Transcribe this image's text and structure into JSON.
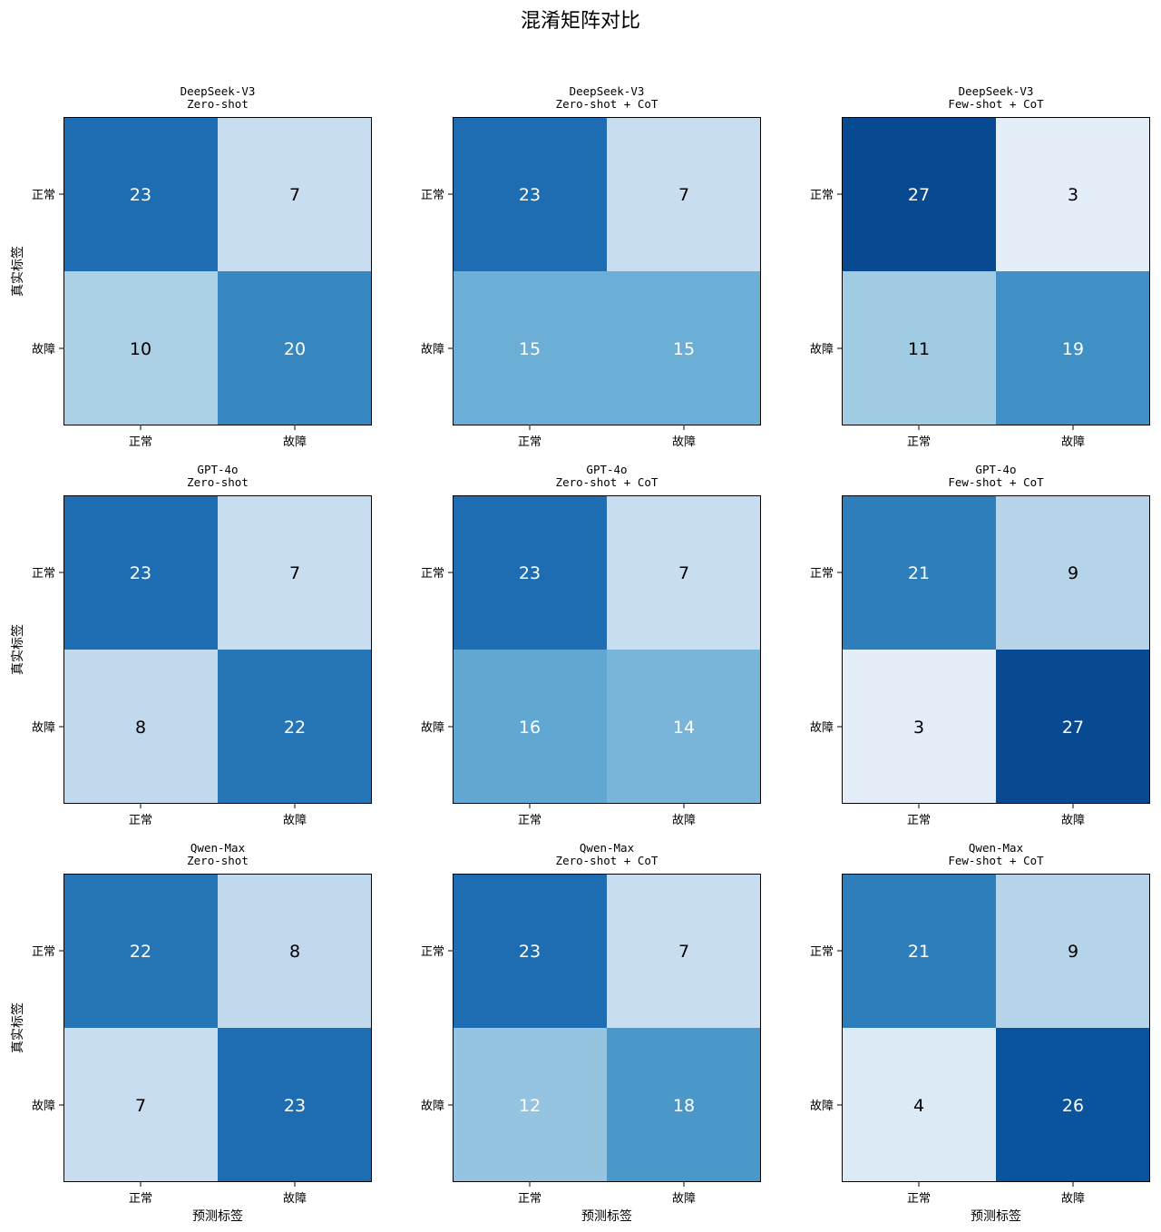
{
  "chart_data": {
    "type": "heatmap",
    "title": "混淆矩阵对比",
    "colormap": "Blues",
    "value_range": [
      0,
      30
    ],
    "xlabel": "预测标签",
    "ylabel": "真实标签",
    "x_tick_labels": [
      "正常",
      "故障"
    ],
    "y_tick_labels": [
      "正常",
      "故障"
    ],
    "panels": [
      {
        "title_line1": "DeepSeek-V3",
        "title_line2": "Zero-shot",
        "matrix": [
          [
            23,
            7
          ],
          [
            10,
            20
          ]
        ]
      },
      {
        "title_line1": "DeepSeek-V3",
        "title_line2": "Zero-shot + CoT",
        "matrix": [
          [
            23,
            7
          ],
          [
            15,
            15
          ]
        ]
      },
      {
        "title_line1": "DeepSeek-V3",
        "title_line2": "Few-shot + CoT",
        "matrix": [
          [
            27,
            3
          ],
          [
            11,
            19
          ]
        ]
      },
      {
        "title_line1": "GPT-4o",
        "title_line2": "Zero-shot",
        "matrix": [
          [
            23,
            7
          ],
          [
            8,
            22
          ]
        ]
      },
      {
        "title_line1": "GPT-4o",
        "title_line2": "Zero-shot + CoT",
        "matrix": [
          [
            23,
            7
          ],
          [
            16,
            14
          ]
        ]
      },
      {
        "title_line1": "GPT-4o",
        "title_line2": "Few-shot + CoT",
        "matrix": [
          [
            21,
            9
          ],
          [
            3,
            27
          ]
        ]
      },
      {
        "title_line1": "Qwen-Max",
        "title_line2": "Zero-shot",
        "matrix": [
          [
            22,
            8
          ],
          [
            7,
            23
          ]
        ]
      },
      {
        "title_line1": "Qwen-Max",
        "title_line2": "Zero-shot + CoT",
        "matrix": [
          [
            23,
            7
          ],
          [
            12,
            18
          ]
        ]
      },
      {
        "title_line1": "Qwen-Max",
        "title_line2": "Few-shot + CoT",
        "matrix": [
          [
            21,
            9
          ],
          [
            4,
            26
          ]
        ]
      }
    ]
  }
}
